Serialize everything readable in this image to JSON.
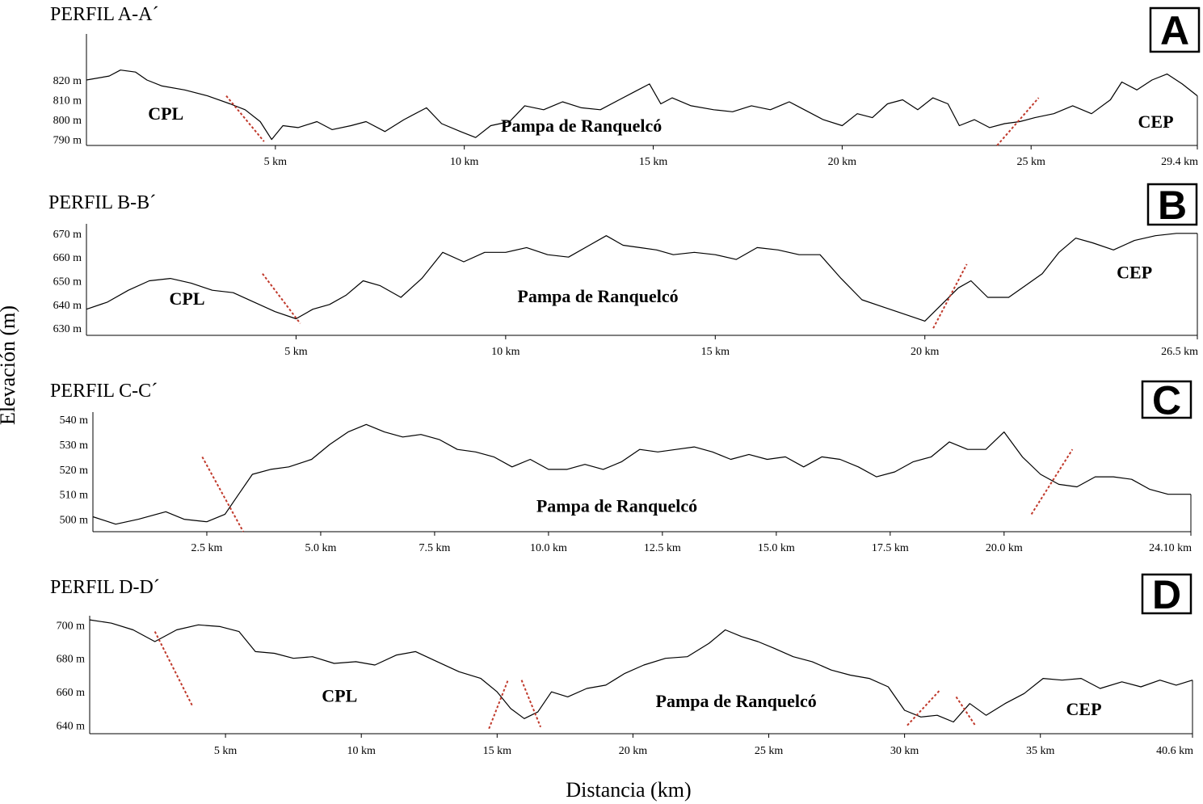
{
  "figure": {
    "ylabel": "Elevación (m)",
    "xlabel": "Distancia (km)"
  },
  "chart_data": [
    {
      "type": "line",
      "title": "PERFIL A-A´",
      "badge": "A",
      "xlim": [
        0,
        29.4
      ],
      "ylim": [
        787,
        842
      ],
      "xtick_values": [
        5,
        10,
        15,
        20,
        25,
        29.4
      ],
      "xtick_labels": [
        "5 km",
        "10 km",
        "15 km",
        "20 km",
        "25 km",
        "29.4 km"
      ],
      "ytick_values": [
        790,
        800,
        810,
        820
      ],
      "ytick_labels": [
        "790 m",
        "800 m",
        "810 m",
        "820 m"
      ],
      "series": [
        {
          "x": [
            0,
            0.6,
            0.9,
            1.3,
            1.6,
            2.0,
            2.6,
            3.2,
            3.8,
            4.2,
            4.6,
            4.9,
            5.2,
            5.6,
            6.1,
            6.5,
            7.0,
            7.4,
            7.9,
            8.4,
            9.0,
            9.4,
            9.9,
            10.3,
            10.7,
            11.2,
            11.6,
            12.1,
            12.6,
            13.1,
            13.6,
            14.1,
            14.5,
            14.9,
            15.2,
            15.5,
            16.0,
            16.6,
            17.1,
            17.6,
            18.1,
            18.6,
            19.0,
            19.5,
            20.0,
            20.4,
            20.8,
            21.2,
            21.6,
            22.0,
            22.4,
            22.8,
            23.1,
            23.5,
            23.9,
            24.3,
            24.7,
            25.1,
            25.6,
            26.1,
            26.6,
            27.1,
            27.4,
            27.8,
            28.2,
            28.6,
            29.0,
            29.4
          ],
          "y": [
            820,
            822,
            825,
            824,
            820,
            817,
            815,
            812,
            808,
            805,
            799,
            790,
            797,
            796,
            799,
            795,
            797,
            799,
            794,
            800,
            806,
            798,
            794,
            791,
            797,
            799,
            807,
            805,
            809,
            806,
            805,
            810,
            814,
            818,
            808,
            811,
            807,
            805,
            804,
            807,
            805,
            809,
            805,
            800,
            797,
            803,
            801,
            808,
            810,
            805,
            811,
            808,
            797,
            800,
            796,
            798,
            799,
            801,
            803,
            807,
            803,
            810,
            819,
            815,
            820,
            823,
            818,
            812
          ]
        }
      ],
      "annotations": [
        {
          "text": "CPL",
          "x": 2.1,
          "y": 800
        },
        {
          "text": "Pampa de Ranquelcó",
          "x": 13.1,
          "y": 794
        },
        {
          "text": "CEP",
          "x": 28.3,
          "y": 796
        }
      ],
      "boundaries": [
        {
          "x": [
            3.7,
            4.7
          ],
          "y": [
            812,
            789
          ]
        },
        {
          "x": [
            24.1,
            25.2
          ],
          "y": [
            787,
            811
          ]
        }
      ]
    },
    {
      "type": "line",
      "title": "PERFIL B-B´",
      "badge": "B",
      "xlim": [
        0,
        26.5
      ],
      "ylim": [
        627,
        673
      ],
      "xtick_values": [
        5,
        10,
        15,
        20,
        26.5
      ],
      "xtick_labels": [
        "5 km",
        "10 km",
        "15 km",
        "20 km",
        "26.5 km"
      ],
      "ytick_values": [
        630,
        640,
        650,
        660,
        670
      ],
      "ytick_labels": [
        "630 m",
        "640 m",
        "650 m",
        "660 m",
        "670 m"
      ],
      "series": [
        {
          "x": [
            0,
            0.5,
            1.0,
            1.5,
            2.0,
            2.5,
            3.0,
            3.5,
            4.0,
            4.5,
            5.0,
            5.4,
            5.8,
            6.2,
            6.6,
            7.0,
            7.5,
            8.0,
            8.5,
            9.0,
            9.5,
            10.0,
            10.5,
            11.0,
            11.5,
            12.0,
            12.4,
            12.8,
            13.2,
            13.6,
            14.0,
            14.5,
            15.0,
            15.5,
            16.0,
            16.5,
            17.0,
            17.5,
            18.0,
            18.5,
            19.0,
            19.5,
            20.0,
            20.4,
            20.8,
            21.1,
            21.5,
            22.0,
            22.4,
            22.8,
            23.2,
            23.6,
            24.0,
            24.5,
            25.0,
            25.5,
            26.0,
            26.5
          ],
          "y": [
            638,
            641,
            646,
            650,
            651,
            649,
            646,
            645,
            641,
            637,
            634,
            638,
            640,
            644,
            650,
            648,
            643,
            651,
            662,
            658,
            662,
            662,
            664,
            661,
            660,
            665,
            669,
            665,
            664,
            663,
            661,
            662,
            661,
            659,
            664,
            663,
            661,
            661,
            651,
            642,
            639,
            636,
            633,
            640,
            647,
            650,
            643,
            643,
            648,
            653,
            662,
            668,
            666,
            663,
            667,
            669,
            670,
            670
          ]
        }
      ],
      "annotations": [
        {
          "text": "CPL",
          "x": 2.4,
          "y": 640
        },
        {
          "text": "Pampa de Ranquelcó",
          "x": 12.2,
          "y": 641
        },
        {
          "text": "CEP",
          "x": 25.0,
          "y": 651
        }
      ],
      "boundaries": [
        {
          "x": [
            4.2,
            5.1
          ],
          "y": [
            653,
            632
          ]
        },
        {
          "x": [
            20.2,
            21.0
          ],
          "y": [
            630,
            657
          ]
        }
      ]
    },
    {
      "type": "line",
      "title": "PERFIL C-C´",
      "badge": "C",
      "xlim": [
        0,
        24.1
      ],
      "ylim": [
        495,
        542
      ],
      "xtick_values": [
        2.5,
        5.0,
        7.5,
        10.0,
        12.5,
        15.0,
        17.5,
        20.0,
        24.1
      ],
      "xtick_labels": [
        "2.5 km",
        "5.0 km",
        "7.5 km",
        "10.0 km",
        "12.5 km",
        "15.0 km",
        "17.5 km",
        "20.0 km",
        "24.10 km"
      ],
      "ytick_values": [
        500,
        510,
        520,
        530,
        540
      ],
      "ytick_labels": [
        "500 m",
        "510 m",
        "520 m",
        "530 m",
        "540 m"
      ],
      "series": [
        {
          "x": [
            0,
            0.5,
            1.0,
            1.6,
            2.0,
            2.5,
            2.9,
            3.2,
            3.5,
            3.9,
            4.3,
            4.8,
            5.2,
            5.6,
            6.0,
            6.4,
            6.8,
            7.2,
            7.6,
            8.0,
            8.4,
            8.8,
            9.2,
            9.6,
            10.0,
            10.4,
            10.8,
            11.2,
            11.6,
            12.0,
            12.4,
            12.8,
            13.2,
            13.6,
            14.0,
            14.4,
            14.8,
            15.2,
            15.6,
            16.0,
            16.4,
            16.8,
            17.2,
            17.6,
            18.0,
            18.4,
            18.8,
            19.2,
            19.6,
            20.0,
            20.4,
            20.8,
            21.2,
            21.6,
            22.0,
            22.4,
            22.8,
            23.2,
            23.6,
            24.1
          ],
          "y": [
            501,
            498,
            500,
            503,
            500,
            499,
            502,
            510,
            518,
            520,
            521,
            524,
            530,
            535,
            538,
            535,
            533,
            534,
            532,
            528,
            527,
            525,
            521,
            524,
            520,
            520,
            522,
            520,
            523,
            528,
            527,
            528,
            529,
            527,
            524,
            526,
            524,
            525,
            521,
            525,
            524,
            521,
            517,
            519,
            523,
            525,
            531,
            528,
            528,
            535,
            525,
            518,
            514,
            513,
            517,
            517,
            516,
            512,
            510,
            510
          ]
        }
      ],
      "annotations": [
        {
          "text": "Pampa de Ranquelcó",
          "x": 11.5,
          "y": 503
        }
      ],
      "boundaries": [
        {
          "x": [
            2.4,
            3.3
          ],
          "y": [
            525,
            495
          ]
        },
        {
          "x": [
            20.6,
            21.5
          ],
          "y": [
            502,
            528
          ]
        }
      ]
    },
    {
      "type": "line",
      "title": "PERFIL D-D´",
      "badge": "D",
      "xlim": [
        0,
        40.6
      ],
      "ylim": [
        635,
        704
      ],
      "xtick_values": [
        5,
        10,
        15,
        20,
        25,
        30,
        35,
        40.6
      ],
      "xtick_labels": [
        "5 km",
        "10 km",
        "15 km",
        "20 km",
        "25 km",
        "30 km",
        "35 km",
        "40.6 km"
      ],
      "ytick_values": [
        640,
        660,
        680,
        700
      ],
      "ytick_labels": [
        "640 m",
        "660 m",
        "680 m",
        "700 m"
      ],
      "series": [
        {
          "x": [
            0,
            0.8,
            1.6,
            2.4,
            3.2,
            4.0,
            4.8,
            5.5,
            6.1,
            6.8,
            7.5,
            8.2,
            9.0,
            9.8,
            10.5,
            11.3,
            12.0,
            12.8,
            13.6,
            14.4,
            15.0,
            15.5,
            16.0,
            16.5,
            17.0,
            17.6,
            18.3,
            19.0,
            19.7,
            20.4,
            21.2,
            22.0,
            22.8,
            23.4,
            24.0,
            24.6,
            25.2,
            25.9,
            26.6,
            27.3,
            28.0,
            28.7,
            29.4,
            30.0,
            30.6,
            31.2,
            31.8,
            32.4,
            33.0,
            33.7,
            34.4,
            35.1,
            35.8,
            36.5,
            37.2,
            38.0,
            38.7,
            39.4,
            40.0,
            40.6
          ],
          "y": [
            703,
            701,
            697,
            690,
            697,
            700,
            699,
            696,
            684,
            683,
            680,
            681,
            677,
            678,
            676,
            682,
            684,
            678,
            672,
            668,
            660,
            650,
            644,
            648,
            660,
            657,
            662,
            664,
            671,
            676,
            680,
            681,
            689,
            697,
            693,
            690,
            686,
            681,
            678,
            673,
            670,
            668,
            663,
            649,
            645,
            646,
            642,
            653,
            646,
            653,
            659,
            668,
            667,
            668,
            662,
            666,
            663,
            667,
            664,
            667
          ]
        }
      ],
      "annotations": [
        {
          "text": "CPL",
          "x": 9.2,
          "y": 654
        },
        {
          "text": "Pampa de Ranquelcó",
          "x": 23.8,
          "y": 651
        },
        {
          "text": "CEP",
          "x": 36.6,
          "y": 646
        }
      ],
      "boundaries": [
        {
          "x": [
            2.4,
            3.8
          ],
          "y": [
            696,
            651
          ]
        },
        {
          "x": [
            14.7,
            15.4
          ],
          "y": [
            638,
            667
          ]
        },
        {
          "x": [
            15.9,
            16.6
          ],
          "y": [
            667,
            639
          ]
        },
        {
          "x": [
            30.1,
            31.3
          ],
          "y": [
            640,
            661
          ]
        },
        {
          "x": [
            31.9,
            32.6
          ],
          "y": [
            657,
            640
          ]
        }
      ]
    }
  ]
}
